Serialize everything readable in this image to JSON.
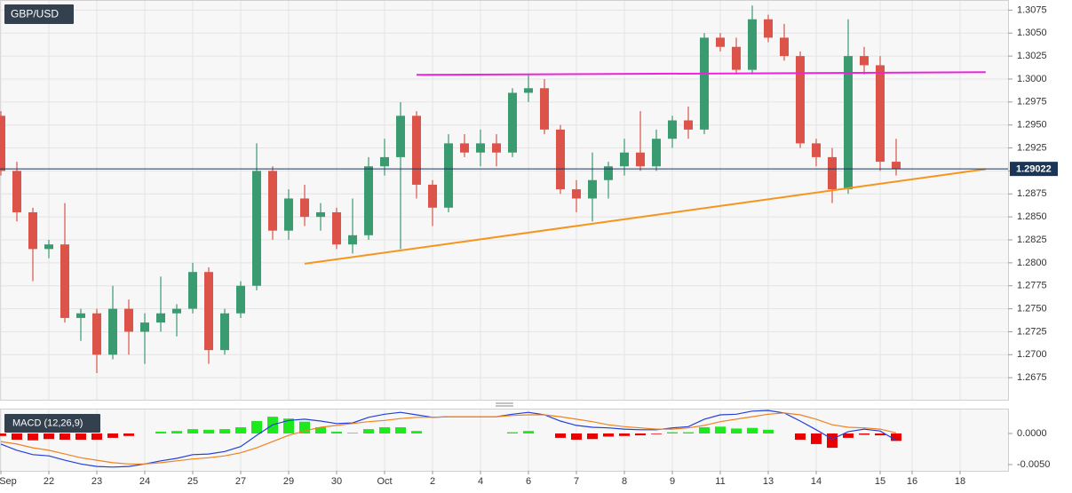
{
  "chart_data": [
    {
      "type": "candlestick",
      "title": "GBP/USD",
      "categories": [
        "Sep",
        null,
        null,
        "22",
        null,
        null,
        "23",
        null,
        null,
        "24",
        null,
        null,
        "25",
        null,
        null,
        "27",
        null,
        null,
        "29",
        null,
        null,
        "30",
        null,
        null,
        "Oct",
        null,
        null,
        "2",
        null,
        null,
        "4",
        null,
        null,
        "6",
        null,
        null,
        "7",
        null,
        null,
        "8",
        null,
        null,
        "9",
        null,
        null,
        "11",
        null,
        null,
        "13",
        null,
        null,
        "14",
        null,
        null,
        null,
        "15",
        null,
        "16",
        null,
        null,
        "18",
        null,
        null
      ],
      "open": [
        1.296,
        1.29,
        1.2855,
        1.2815,
        1.282,
        1.274,
        1.2745,
        1.27,
        1.275,
        1.2725,
        1.2735,
        1.2745,
        1.275,
        1.279,
        1.2705,
        1.2745,
        1.2775,
        1.29,
        1.2835,
        1.287,
        1.285,
        1.2855,
        1.282,
        1.283,
        1.2905,
        1.2915,
        1.296,
        1.2885,
        1.286,
        1.293,
        1.292,
        1.293,
        1.292,
        1.2985,
        1.299,
        1.2945,
        1.288,
        1.287,
        1.289,
        1.2905,
        1.292,
        1.2905,
        1.2935,
        1.2955,
        1.2945,
        1.3045,
        1.3035,
        1.301,
        1.3065,
        1.3045,
        1.3025,
        1.293,
        1.2915,
        1.288,
        1.3025,
        1.3015,
        1.291,
        null,
        null,
        null,
        null,
        null,
        null
      ],
      "high": [
        1.2965,
        1.291,
        1.286,
        1.2825,
        1.2865,
        1.275,
        1.275,
        1.2775,
        1.276,
        1.2745,
        1.2785,
        1.2755,
        1.28,
        1.2795,
        1.275,
        1.278,
        1.293,
        1.2905,
        1.288,
        1.2885,
        1.2865,
        1.286,
        1.287,
        1.2915,
        1.2935,
        1.2975,
        1.2965,
        1.289,
        1.294,
        1.294,
        1.2945,
        1.294,
        1.299,
        1.3005,
        1.3,
        1.295,
        1.289,
        1.292,
        1.291,
        1.2935,
        1.2965,
        1.2945,
        1.296,
        1.297,
        1.305,
        1.305,
        1.3045,
        1.308,
        1.307,
        1.306,
        1.303,
        1.2935,
        1.2925,
        1.3065,
        1.3035,
        1.3025,
        1.2935,
        null,
        null,
        null,
        null,
        null,
        null
      ],
      "low": [
        1.2895,
        1.2845,
        1.278,
        1.2805,
        1.2735,
        1.2715,
        1.268,
        1.2695,
        1.27,
        1.269,
        1.2725,
        1.272,
        1.2745,
        1.269,
        1.27,
        1.274,
        1.277,
        1.2825,
        1.2825,
        1.284,
        1.2835,
        1.2815,
        1.281,
        1.2825,
        1.2895,
        1.2815,
        1.287,
        1.284,
        1.2855,
        1.2915,
        1.2905,
        1.2905,
        1.2915,
        1.2975,
        1.294,
        1.2875,
        1.2855,
        1.2845,
        1.287,
        1.2895,
        1.29,
        1.29,
        1.2925,
        1.2935,
        1.294,
        1.303,
        1.3005,
        1.3005,
        1.304,
        1.302,
        1.2925,
        1.2905,
        1.2865,
        1.2875,
        1.3005,
        1.29,
        1.2895,
        null,
        null,
        null,
        null,
        null,
        null
      ],
      "close": [
        1.29,
        1.2855,
        1.2815,
        1.282,
        1.274,
        1.2745,
        1.27,
        1.275,
        1.2725,
        1.2735,
        1.2745,
        1.275,
        1.279,
        1.2705,
        1.2745,
        1.2775,
        1.29,
        1.2835,
        1.287,
        1.285,
        1.2855,
        1.282,
        1.283,
        1.2905,
        1.2915,
        1.296,
        1.2885,
        1.286,
        1.293,
        1.292,
        1.293,
        1.292,
        1.2985,
        1.299,
        1.2945,
        1.288,
        1.287,
        1.289,
        1.2905,
        1.292,
        1.2905,
        1.2935,
        1.2955,
        1.2945,
        1.3045,
        1.3035,
        1.301,
        1.3065,
        1.3045,
        1.3025,
        1.293,
        1.2915,
        1.288,
        1.3025,
        1.3015,
        1.291,
        1.29022,
        null,
        null,
        null,
        null,
        null,
        null
      ],
      "up_color": "#3a9a70",
      "down_color": "#dc5449",
      "last_price": 1.29022,
      "last_price_color": "#1b3556",
      "trendlines": [
        {
          "color": "#ee22dd",
          "x": [
            26,
            61.6
          ],
          "y": [
            1.30045,
            1.30074
          ]
        },
        {
          "color": "#f7941d",
          "x": [
            19,
            61.6
          ],
          "y": [
            1.2799,
            1.2902
          ]
        }
      ],
      "ylim": [
        1.2651,
        1.3086
      ],
      "yticks": [
        1.2675,
        {
          "value": 1.27,
          "label": "1.2700"
        },
        1.2725,
        {
          "value": 1.275,
          "label": "1.2750"
        },
        1.2775,
        {
          "value": 1.28,
          "label": "1.2800"
        },
        1.2825,
        {
          "value": 1.285,
          "label": "1.2850"
        },
        1.2875,
        {
          "value": 1.29,
          "label": "1.2900"
        },
        1.2925,
        {
          "value": 1.295,
          "label": "1.2950"
        },
        1.2975,
        {
          "value": 1.3,
          "label": "1.3000"
        },
        1.3025,
        {
          "value": 1.305,
          "label": "1.3050"
        },
        1.3075
      ],
      "grid": true
    },
    {
      "type": "macd",
      "title": "MACD (12,26,9)",
      "series": [
        {
          "color": "#2340d8",
          "values": [
            -0.0017,
            -0.0027,
            -0.0034,
            -0.0036,
            -0.0043,
            -0.0049,
            -0.0053,
            -0.0054,
            -0.0053,
            -0.0049,
            -0.0044,
            -0.004,
            -0.0034,
            -0.0033,
            -0.0029,
            -0.0021,
            -0.0003,
            0.0014,
            0.0021,
            0.0023,
            0.002,
            0.0016,
            0.0017,
            0.0026,
            0.0031,
            0.0034,
            0.003,
            0.0026,
            0.0027,
            0.0027,
            0.0027,
            0.0027,
            0.0031,
            0.0034,
            0.003,
            0.002,
            0.0013,
            0.001,
            0.0009,
            0.0007,
            0.0006,
            0.0006,
            0.0009,
            0.0011,
            0.0023,
            0.003,
            0.0031,
            0.0036,
            0.0037,
            0.0033,
            0.002,
            0.0006,
            -0.0009,
            0.0003,
            0.0007,
            0.0004,
            -0.0011,
            null,
            null,
            null,
            null,
            null,
            null
          ]
        },
        {
          "color": "#f0821e",
          "values": [
            -0.0013,
            -0.0017,
            -0.0023,
            -0.0027,
            -0.0033,
            -0.0039,
            -0.0043,
            -0.0047,
            -0.0049,
            -0.0049,
            -0.0047,
            -0.0044,
            -0.0041,
            -0.0039,
            -0.0036,
            -0.0031,
            -0.0023,
            -0.0013,
            -0.0003,
            0.0004,
            0.001,
            0.0013,
            0.0016,
            0.0019,
            0.0021,
            0.0024,
            0.0026,
            0.0026,
            0.0027,
            0.0027,
            0.0027,
            0.0027,
            0.0029,
            0.003,
            0.003,
            0.0027,
            0.0023,
            0.0019,
            0.0014,
            0.0011,
            0.0009,
            0.0007,
            0.0007,
            0.0009,
            0.0013,
            0.0019,
            0.0023,
            0.0027,
            0.0031,
            0.0033,
            0.003,
            0.0023,
            0.0014,
            0.001,
            0.0009,
            0.0007,
            0.0001,
            null,
            null,
            null,
            null,
            null,
            null
          ]
        }
      ],
      "histogram": {
        "up_color": "#1ee81e",
        "down_color": "#e80000",
        "values": [
          -0.0004,
          -0.001,
          -0.0011,
          -0.0009,
          -0.001,
          -0.001,
          -0.001,
          -0.0007,
          -0.0004,
          0,
          0.0003,
          0.0004,
          0.0007,
          0.0006,
          0.0007,
          0.001,
          0.002,
          0.0027,
          0.0024,
          0.0019,
          0.001,
          0.0003,
          0.0001,
          0.0007,
          0.001,
          0.001,
          0.0004,
          0,
          0,
          0,
          0,
          0,
          0.0002,
          0.0004,
          0,
          -0.0007,
          -0.001,
          -0.0009,
          -0.0005,
          -0.0004,
          -0.0003,
          -0.0001,
          0.0002,
          0.0002,
          0.001,
          0.0011,
          0.0008,
          0.0009,
          0.0006,
          0,
          -0.001,
          -0.0017,
          -0.0023,
          -0.0007,
          -0.0002,
          -0.0003,
          -0.0012,
          null,
          null,
          null,
          null,
          null,
          null
        ]
      },
      "ylim": [
        -0.006,
        0.004
      ],
      "yticks": [
        {
          "value": 0,
          "label": "0.0000"
        },
        {
          "value": -0.005,
          "label": "-0.0050"
        }
      ]
    }
  ]
}
